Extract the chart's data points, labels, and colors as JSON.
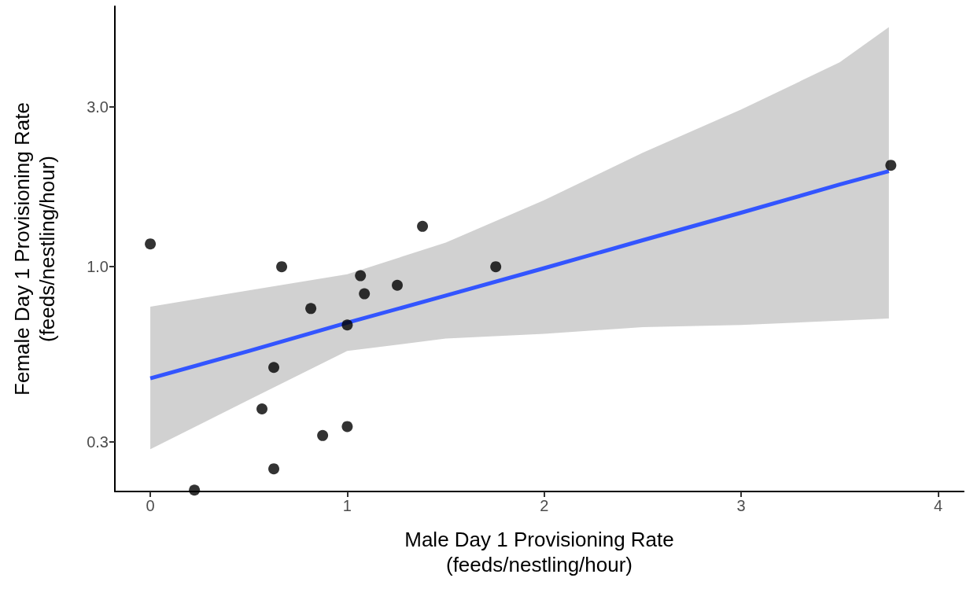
{
  "chart_data": {
    "type": "scatter",
    "xlabel": "Male Day 1 Provisioning Rate\n(feeds/nestling/hour)",
    "ylabel": "Female Day 1 Provisioning Rate\n(feeds/nestling/hour)",
    "log": "y",
    "grid": false,
    "marker": "circle",
    "xlim": [
      -0.18,
      4.13
    ],
    "xticks": [
      0,
      1,
      2,
      3,
      4
    ],
    "ylim": [
      0.213,
      6
    ],
    "yticks": [
      0.3,
      {
        "value": 1,
        "label": "1.0"
      },
      {
        "value": 3,
        "label": "3.0"
      }
    ],
    "series": [
      {
        "type": "scatter",
        "color": "#000000",
        "x": [
          0,
          0.224,
          0.567,
          0.627,
          0.627,
          0.667,
          0.815,
          0.875,
          1.0,
          1.0,
          1.067,
          1.087,
          1.254,
          1.382,
          1.754,
          3.76
        ],
        "values": [
          1.17,
          0.215,
          0.376,
          0.5,
          0.249,
          1.0,
          0.75,
          0.313,
          0.333,
          0.67,
          0.94,
          0.83,
          0.88,
          1.32,
          1.0,
          2.01
        ]
      },
      {
        "type": "line",
        "color": "#3355ff",
        "marker": "none",
        "x": [
          0,
          0.5,
          1,
          1.5,
          2,
          2.5,
          3,
          3.5,
          3.75
        ],
        "values": [
          0.464,
          0.56,
          0.68,
          0.82,
          0.99,
          1.2,
          1.45,
          1.76,
          1.93
        ],
        "lower": [
          0.285,
          0.4,
          0.56,
          0.61,
          0.63,
          0.66,
          0.67,
          0.69,
          0.7
        ],
        "upper": [
          0.76,
          0.85,
          0.95,
          1.18,
          1.58,
          2.19,
          2.95,
          4.08,
          5.2
        ]
      }
    ]
  }
}
